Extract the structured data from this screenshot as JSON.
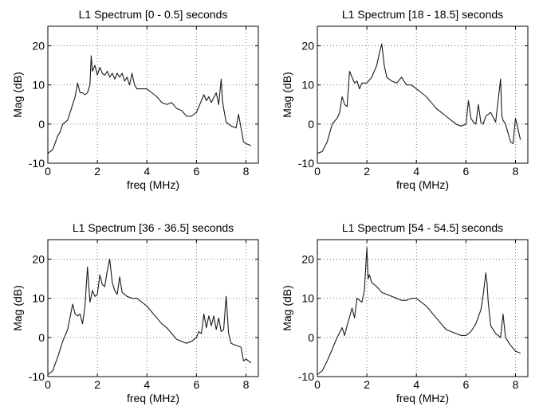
{
  "chart_data": [
    {
      "type": "line",
      "title": "L1 Spectrum [0 - 0.5] seconds",
      "xlabel": "freq (MHz)",
      "ylabel": "Mag (dB)",
      "xlim": [
        0,
        8.5
      ],
      "ylim": [
        -10,
        25
      ],
      "xticks": [
        0,
        2,
        4,
        6,
        8
      ],
      "yticks": [
        -10,
        0,
        10,
        20
      ],
      "grid": true,
      "x": [
        0,
        0.2,
        0.4,
        0.5,
        0.6,
        0.8,
        1.0,
        1.1,
        1.2,
        1.3,
        1.4,
        1.5,
        1.6,
        1.7,
        1.75,
        1.8,
        1.9,
        2.0,
        2.1,
        2.2,
        2.3,
        2.4,
        2.5,
        2.6,
        2.7,
        2.8,
        2.9,
        3.0,
        3.1,
        3.2,
        3.3,
        3.4,
        3.5,
        3.6,
        3.8,
        4.0,
        4.2,
        4.4,
        4.6,
        4.8,
        5.0,
        5.2,
        5.4,
        5.6,
        5.8,
        6.0,
        6.2,
        6.3,
        6.4,
        6.5,
        6.6,
        6.8,
        6.9,
        7.0,
        7.05,
        7.1,
        7.2,
        7.4,
        7.6,
        7.7,
        7.8,
        7.9,
        8.0,
        8.2
      ],
      "y": [
        -7.5,
        -6.5,
        -3.0,
        -2.0,
        0.0,
        1.0,
        5.0,
        7.0,
        10.5,
        8.0,
        8.0,
        7.5,
        8.0,
        10.0,
        17.5,
        13.5,
        15.0,
        12.5,
        14.5,
        13.0,
        12.5,
        13.5,
        12.0,
        13.0,
        11.5,
        13.0,
        12.0,
        13.0,
        11.0,
        12.0,
        10.0,
        13.0,
        10.0,
        9.0,
        9.0,
        9.0,
        8.0,
        7.0,
        5.5,
        5.0,
        5.5,
        4.0,
        3.5,
        2.0,
        2.0,
        3.0,
        6.0,
        7.5,
        6.0,
        7.0,
        5.5,
        8.0,
        5.0,
        11.5,
        6.0,
        4.0,
        0.5,
        -0.5,
        -1.0,
        2.5,
        -1.0,
        -4.5,
        -5.0,
        -5.5
      ]
    },
    {
      "type": "line",
      "title": "L1 Spectrum [18 - 18.5] seconds",
      "xlabel": "freq (MHz)",
      "ylabel": "Mag (dB)",
      "xlim": [
        0,
        8.5
      ],
      "ylim": [
        -10,
        25
      ],
      "xticks": [
        0,
        2,
        4,
        6,
        8
      ],
      "yticks": [
        -10,
        0,
        10,
        20
      ],
      "grid": true,
      "x": [
        0,
        0.2,
        0.4,
        0.6,
        0.8,
        0.9,
        1.0,
        1.1,
        1.2,
        1.3,
        1.4,
        1.5,
        1.6,
        1.7,
        1.8,
        2.0,
        2.2,
        2.4,
        2.5,
        2.6,
        2.7,
        2.8,
        3.0,
        3.2,
        3.4,
        3.6,
        3.8,
        4.0,
        4.2,
        4.4,
        4.6,
        4.8,
        5.0,
        5.2,
        5.4,
        5.6,
        5.8,
        6.0,
        6.1,
        6.2,
        6.3,
        6.4,
        6.5,
        6.6,
        6.7,
        6.8,
        7.0,
        7.2,
        7.4,
        7.45,
        7.5,
        7.6,
        7.8,
        7.9,
        8.0,
        8.2
      ],
      "y": [
        -7.5,
        -7.0,
        -4.5,
        0.0,
        1.5,
        3.0,
        7.0,
        5.0,
        4.5,
        13.5,
        12.0,
        10.5,
        11.0,
        9.0,
        10.5,
        10.5,
        12.0,
        15.0,
        18.0,
        20.5,
        15.0,
        12.0,
        11.0,
        10.5,
        12.0,
        10.0,
        10.0,
        9.0,
        8.0,
        7.0,
        5.5,
        4.0,
        3.0,
        2.0,
        1.0,
        0.0,
        -0.5,
        0.0,
        6.0,
        1.5,
        0.5,
        0.0,
        5.0,
        0.5,
        0.0,
        2.0,
        3.0,
        0.5,
        11.5,
        2.0,
        1.0,
        0.0,
        -4.5,
        -5.0,
        1.5,
        -4.0
      ]
    },
    {
      "type": "line",
      "title": "L1 Spectrum [36 - 36.5] seconds",
      "xlabel": "freq (MHz)",
      "ylabel": "Mag (dB)",
      "xlim": [
        0,
        8.5
      ],
      "ylim": [
        -10,
        25
      ],
      "xticks": [
        0,
        2,
        4,
        6,
        8
      ],
      "yticks": [
        -10,
        0,
        10,
        20
      ],
      "grid": true,
      "x": [
        0,
        0.2,
        0.4,
        0.6,
        0.8,
        1.0,
        1.1,
        1.2,
        1.3,
        1.4,
        1.5,
        1.6,
        1.7,
        1.8,
        1.9,
        2.0,
        2.1,
        2.2,
        2.3,
        2.4,
        2.5,
        2.6,
        2.7,
        2.8,
        2.9,
        3.0,
        3.2,
        3.4,
        3.6,
        3.8,
        4.0,
        4.2,
        4.4,
        4.6,
        4.8,
        5.0,
        5.2,
        5.4,
        5.6,
        5.8,
        6.0,
        6.1,
        6.2,
        6.3,
        6.4,
        6.5,
        6.6,
        6.7,
        6.8,
        6.9,
        7.0,
        7.1,
        7.2,
        7.3,
        7.4,
        7.6,
        7.8,
        7.9,
        8.0,
        8.2
      ],
      "y": [
        -9.5,
        -8.5,
        -5.0,
        -1.0,
        2.0,
        8.5,
        6.0,
        5.5,
        6.0,
        3.5,
        8.0,
        18.0,
        9.0,
        12.0,
        10.5,
        11.0,
        16.0,
        13.5,
        13.0,
        17.0,
        20.0,
        14.0,
        12.0,
        11.0,
        15.5,
        11.5,
        10.5,
        10.0,
        10.0,
        9.0,
        8.0,
        6.5,
        5.0,
        3.5,
        2.5,
        1.0,
        -0.5,
        -1.0,
        -1.5,
        -1.0,
        0.0,
        1.5,
        1.0,
        6.0,
        2.5,
        5.5,
        3.0,
        5.5,
        2.0,
        5.0,
        1.5,
        2.0,
        10.5,
        1.0,
        -1.5,
        -2.0,
        -2.5,
        -6.0,
        -5.5,
        -6.5
      ]
    },
    {
      "type": "line",
      "title": "L1 Spectrum [54 - 54.5] seconds",
      "xlabel": "freq (MHz)",
      "ylabel": "Mag (dB)",
      "xlim": [
        0,
        8.5
      ],
      "ylim": [
        -10,
        25
      ],
      "xticks": [
        0,
        2,
        4,
        6,
        8
      ],
      "yticks": [
        -10,
        0,
        10,
        20
      ],
      "grid": true,
      "x": [
        0,
        0.2,
        0.4,
        0.6,
        0.8,
        1.0,
        1.1,
        1.2,
        1.4,
        1.5,
        1.6,
        1.8,
        1.9,
        2.0,
        2.05,
        2.1,
        2.2,
        2.4,
        2.6,
        2.8,
        3.0,
        3.2,
        3.4,
        3.6,
        3.8,
        4.0,
        4.2,
        4.4,
        4.6,
        4.8,
        5.0,
        5.2,
        5.4,
        5.6,
        5.8,
        6.0,
        6.2,
        6.4,
        6.6,
        6.7,
        6.8,
        6.85,
        6.9,
        7.0,
        7.2,
        7.4,
        7.5,
        7.6,
        7.8,
        8.0,
        8.2
      ],
      "y": [
        -9.5,
        -8.5,
        -6.0,
        -3.0,
        0.0,
        2.5,
        0.5,
        3.0,
        7.5,
        5.0,
        10.0,
        9.0,
        12.0,
        23.0,
        15.0,
        16.0,
        14.0,
        13.0,
        11.5,
        11.0,
        10.5,
        10.0,
        9.5,
        9.5,
        10.0,
        10.0,
        9.0,
        8.0,
        6.5,
        5.0,
        3.5,
        2.0,
        1.5,
        1.0,
        0.5,
        0.5,
        1.5,
        3.5,
        7.0,
        11.0,
        16.5,
        14.0,
        9.0,
        3.0,
        1.0,
        0.0,
        6.0,
        0.0,
        -2.0,
        -3.5,
        -4.0
      ]
    }
  ]
}
